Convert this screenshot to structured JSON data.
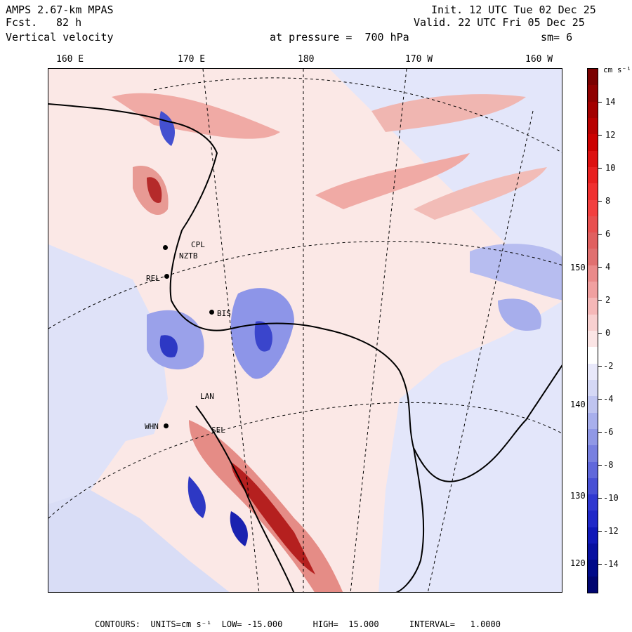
{
  "header": {
    "model": "AMPS 2.67-km MPAS",
    "forecast_label": "Fcst.",
    "forecast_hours": "82 h",
    "field": "Vertical velocity",
    "init": "Init. 12 UTC Tue 02 Dec 25",
    "valid": "Valid. 22 UTC Fri 05 Dec 25",
    "level": "at pressure =  700 hPa",
    "smoothing": "sm= 6"
  },
  "map": {
    "lon_labels": [
      "160 E",
      "170 E",
      "180",
      "170 W",
      "160 W"
    ],
    "lat_labels": [
      "150 W",
      "140 W",
      "130 W",
      "120 W"
    ],
    "stations": [
      "CPL",
      "NZTB",
      "REL",
      "BIS",
      "LAN",
      "WHN",
      "SEL"
    ],
    "colors": {
      "pos_light": "#f6c9c5",
      "pos_mid": "#e8938c",
      "neg_light": "#d5d8f5",
      "neg_mid": "#8d95e8",
      "neg_strong": "#3340c8",
      "pos_strong": "#b5201f"
    }
  },
  "colorbar": {
    "units": "cm s⁻¹",
    "labels": [
      "14",
      "12",
      "10",
      "8",
      "6",
      "4",
      "2",
      "0",
      "-2",
      "-4",
      "-6",
      "-8",
      "-10",
      "-12",
      "-14"
    ],
    "colors": [
      "#7a0000",
      "#8f0000",
      "#a30000",
      "#b80000",
      "#cc0000",
      "#dd1010",
      "#e82020",
      "#f03030",
      "#f24040",
      "#e85050",
      "#e06060",
      "#e07070",
      "#ea8a8a",
      "#f0a0a0",
      "#f5b8b8",
      "#f8d0d0",
      "#fbe5e5",
      "#ffffff",
      "#e8e8fa",
      "#d5d8f5",
      "#bfc4f0",
      "#a8afec",
      "#9098e6",
      "#7880e0",
      "#6068db",
      "#4850d5",
      "#3038d0",
      "#2028c8",
      "#1018b8",
      "#0810a0",
      "#000a88",
      "#000570"
    ]
  },
  "footer": {
    "text": "CONTOURS:  UNITS=cm s⁻¹  LOW= -15.000      HIGH=  15.000      INTERVAL=   1.0000"
  }
}
